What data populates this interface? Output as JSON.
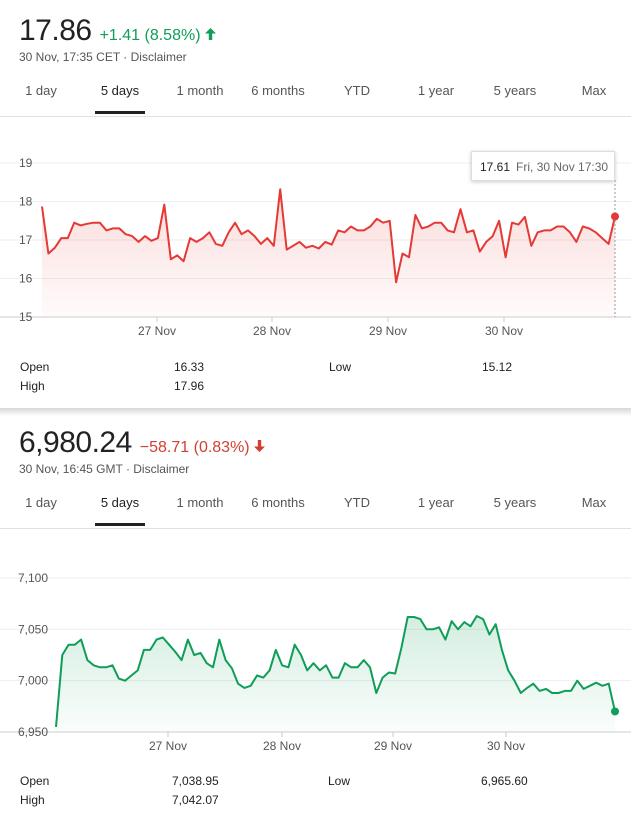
{
  "tabs": [
    "1 day",
    "5 days",
    "1 month",
    "6 months",
    "YTD",
    "1 year",
    "5 years",
    "Max"
  ],
  "active_tab": "5 days",
  "stock1": {
    "price": "17.86",
    "change": "+1.41 (8.58%)",
    "direction": "up",
    "subtitle": "30 Nov, 17:35 CET · Disclaimer",
    "tooltip_value": "17.61",
    "tooltip_date": "Fri, 30 Nov 17:30",
    "stats": {
      "open_label": "Open",
      "open": "16.33",
      "high_label": "High",
      "high": "17.96",
      "low_label": "Low",
      "low": "15.12"
    },
    "color": "#e53935"
  },
  "stock2": {
    "price": "6,980.24",
    "change": "−58.71 (0.83%)",
    "direction": "down",
    "subtitle": "30 Nov, 16:45 GMT · Disclaimer",
    "stats": {
      "open_label": "Open",
      "open": "7,038.95",
      "high_label": "High",
      "high": "7,042.07",
      "low_label": "Low",
      "low": "6,965.60"
    },
    "color": "#0f9d58"
  },
  "chart_data": [
    {
      "type": "line",
      "x_tick_labels": [
        "27 Nov",
        "28 Nov",
        "29 Nov",
        "30 Nov"
      ],
      "y_tick_labels": [
        "19",
        "18",
        "17",
        "16",
        "15"
      ],
      "ylim": [
        15,
        19
      ],
      "grid": true,
      "series": [
        {
          "values": [
            17.87,
            16.65,
            16.8,
            17.05,
            17.05,
            17.45,
            17.38,
            17.42,
            17.45,
            17.45,
            17.25,
            17.3,
            17.3,
            17.15,
            17.1,
            16.95,
            17.1,
            16.98,
            17.05,
            17.92,
            16.5,
            16.6,
            16.45,
            17.05,
            16.95,
            17.05,
            17.2,
            16.9,
            16.85,
            17.2,
            17.45,
            17.15,
            17.25,
            17.1,
            16.9,
            17.05,
            16.85,
            18.32,
            16.75,
            16.85,
            16.95,
            16.8,
            16.85,
            16.78,
            16.95,
            16.88,
            17.25,
            17.2,
            17.35,
            17.25,
            17.25,
            17.35,
            17.55,
            17.45,
            17.5,
            15.9,
            16.65,
            16.55,
            17.65,
            17.3,
            17.35,
            17.45,
            17.45,
            17.25,
            17.2,
            17.8,
            17.2,
            17.25,
            16.7,
            16.95,
            17.1,
            17.5,
            16.55,
            17.45,
            17.4,
            17.6,
            16.85,
            17.2,
            17.25,
            17.25,
            17.35,
            17.35,
            17.2,
            16.95,
            17.35,
            17.3,
            17.2,
            17.05,
            16.9,
            17.61
          ]
        }
      ]
    },
    {
      "type": "line",
      "x_tick_labels": [
        "27 Nov",
        "28 Nov",
        "29 Nov",
        "30 Nov"
      ],
      "y_tick_labels": [
        "7,100",
        "7,050",
        "7,000",
        "6,950"
      ],
      "ylim": [
        6950,
        7100
      ],
      "grid": true,
      "series": [
        {
          "values": [
            6955,
            7025,
            7035,
            7035,
            7040,
            7020,
            7015,
            7013,
            7013,
            7015,
            7002,
            7000,
            7005,
            7010,
            7030,
            7030,
            7040,
            7042,
            7035,
            7028,
            7020,
            7040,
            7025,
            7027,
            7017,
            7013,
            7040,
            7020,
            7012,
            6997,
            6993,
            6995,
            7005,
            7003,
            7010,
            7030,
            7015,
            7013,
            7035,
            7025,
            7010,
            7017,
            7010,
            7015,
            7003,
            7003,
            7017,
            7013,
            7013,
            7020,
            7013,
            6988,
            7003,
            7008,
            7007,
            7032,
            7062,
            7062,
            7060,
            7050,
            7050,
            7052,
            7040,
            7058,
            7050,
            7057,
            7053,
            7063,
            7060,
            7045,
            7055,
            7030,
            7010,
            7000,
            6988,
            6993,
            6997,
            6990,
            6992,
            6988,
            6988,
            6990,
            6990,
            7000,
            6992,
            6995,
            6998,
            6995,
            6997,
            6970
          ]
        }
      ]
    }
  ]
}
